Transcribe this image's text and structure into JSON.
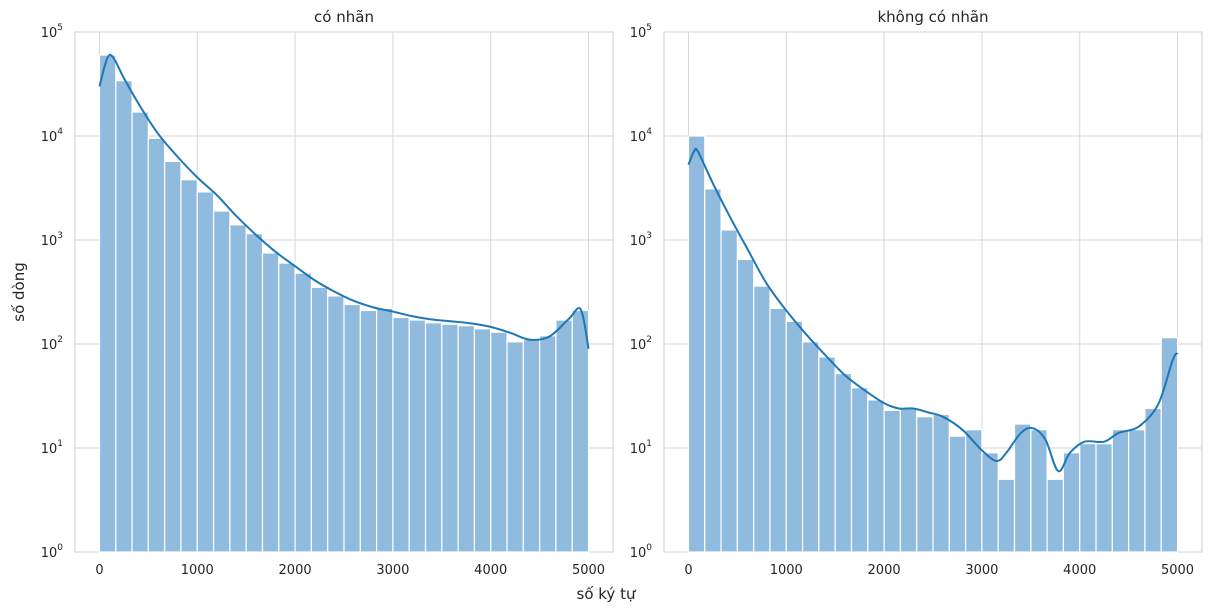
{
  "figure": {
    "xlabel": "số ký tự",
    "ylabel": "số dòng"
  },
  "chart_data": [
    {
      "type": "bar",
      "title": "có nhãn",
      "xlabel": "số ký tự",
      "ylabel": "số dòng",
      "y_scale": "log",
      "xlim": [
        -250,
        5250
      ],
      "ylim": [
        1,
        100000
      ],
      "xticks": [
        0,
        1000,
        2000,
        3000,
        4000,
        5000
      ],
      "yticks": [
        1,
        10,
        100,
        1000,
        10000,
        100000
      ],
      "grid": true,
      "bin_width": 166.67,
      "bin_edges_start": 0,
      "values": [
        60000,
        34000,
        17000,
        9500,
        5700,
        3800,
        2900,
        1900,
        1400,
        1150,
        750,
        600,
        480,
        350,
        290,
        240,
        210,
        220,
        180,
        170,
        160,
        155,
        150,
        140,
        130,
        105,
        110,
        120,
        170,
        210
      ],
      "kde": [
        [
          0,
          30000
        ],
        [
          80,
          56000
        ],
        [
          140,
          57000
        ],
        [
          250,
          36000
        ],
        [
          420,
          19000
        ],
        [
          600,
          10500
        ],
        [
          800,
          6300
        ],
        [
          1000,
          4000
        ],
        [
          1200,
          2700
        ],
        [
          1400,
          1700
        ],
        [
          1600,
          1120
        ],
        [
          1800,
          770
        ],
        [
          2000,
          560
        ],
        [
          2200,
          410
        ],
        [
          2400,
          320
        ],
        [
          2600,
          260
        ],
        [
          2800,
          225
        ],
        [
          3000,
          205
        ],
        [
          3200,
          185
        ],
        [
          3400,
          172
        ],
        [
          3600,
          165
        ],
        [
          3800,
          158
        ],
        [
          4000,
          146
        ],
        [
          4200,
          128
        ],
        [
          4400,
          110
        ],
        [
          4600,
          118
        ],
        [
          4800,
          175
        ],
        [
          4920,
          215
        ],
        [
          5000,
          90
        ]
      ],
      "color": "#1f77b4",
      "bar_fill": "#90bade"
    },
    {
      "type": "bar",
      "title": "không có nhãn",
      "xlabel": "số ký tự",
      "ylabel": "số dòng",
      "y_scale": "log",
      "xlim": [
        -250,
        5250
      ],
      "ylim": [
        1,
        100000
      ],
      "xticks": [
        0,
        1000,
        2000,
        3000,
        4000,
        5000
      ],
      "yticks": [
        1,
        10,
        100,
        1000,
        10000,
        100000
      ],
      "grid": true,
      "bin_width": 166.67,
      "bin_edges_start": 0,
      "values": [
        10000,
        3100,
        1250,
        650,
        360,
        220,
        165,
        105,
        75,
        52,
        38,
        29,
        23,
        24,
        20,
        21,
        13,
        15,
        9,
        5,
        17,
        15,
        5,
        9,
        11,
        11,
        15,
        15,
        24,
        115
      ],
      "kde": [
        [
          0,
          5300
        ],
        [
          60,
          7200
        ],
        [
          100,
          7000
        ],
        [
          250,
          3500
        ],
        [
          420,
          1700
        ],
        [
          600,
          830
        ],
        [
          800,
          380
        ],
        [
          1000,
          210
        ],
        [
          1200,
          125
        ],
        [
          1400,
          78
        ],
        [
          1600,
          50
        ],
        [
          1800,
          36
        ],
        [
          2000,
          27
        ],
        [
          2150,
          24
        ],
        [
          2300,
          24
        ],
        [
          2450,
          22
        ],
        [
          2600,
          20
        ],
        [
          2800,
          15
        ],
        [
          3000,
          9.5
        ],
        [
          3150,
          7.5
        ],
        [
          3250,
          9
        ],
        [
          3400,
          14
        ],
        [
          3520,
          15.5
        ],
        [
          3650,
          12
        ],
        [
          3780,
          6
        ],
        [
          3900,
          9
        ],
        [
          4050,
          11.5
        ],
        [
          4250,
          11.5
        ],
        [
          4400,
          14
        ],
        [
          4600,
          16
        ],
        [
          4800,
          26
        ],
        [
          4950,
          70
        ],
        [
          5000,
          82
        ]
      ],
      "color": "#1f77b4",
      "bar_fill": "#90bade"
    }
  ]
}
